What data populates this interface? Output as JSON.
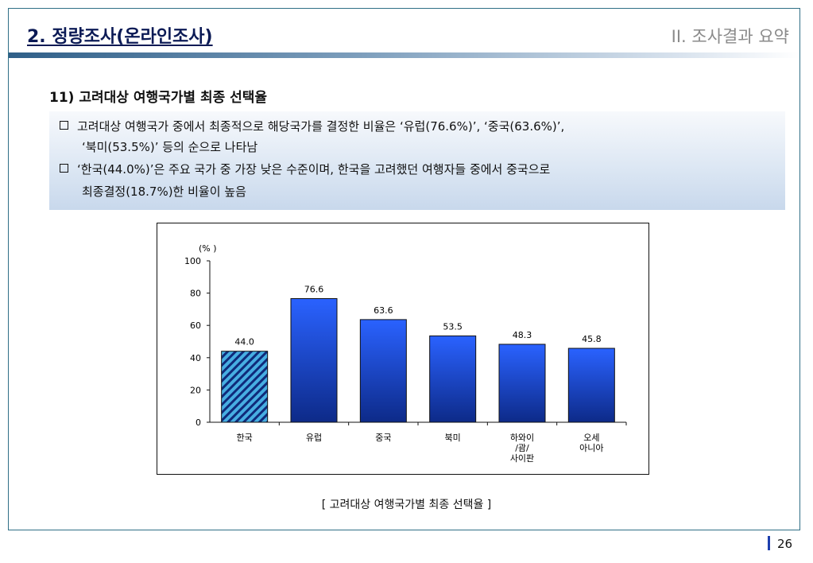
{
  "header": {
    "title": "2. 정량조사(온라인조사)",
    "section": "II. 조사결과 요약"
  },
  "subtitle": "11) 고려대상 여행국가별 최종 선택율",
  "bullets": [
    {
      "line1": "고려대상 여행국가 중에서 최종적으로 해당국가를 결정한 비율은 ‘유럽(76.6%)’, ‘중국(63.6%)’,",
      "line2": "‘북미(53.5%)’ 등의 순으로 나타남"
    },
    {
      "line1": "‘한국(44.0%)’은 주요 국가 중 가장 낮은 수준이며, 한국을 고려했던 여행자들 중에서 중국으로",
      "line2": "최종결정(18.7%)한 비율이 높음"
    }
  ],
  "chart_data": {
    "type": "bar",
    "unit_label": "(% )",
    "categories": [
      [
        "한국"
      ],
      [
        "유럽"
      ],
      [
        "중국"
      ],
      [
        "북미"
      ],
      [
        "하와이",
        "/괌/",
        "사이판"
      ],
      [
        "오세",
        "아니아"
      ]
    ],
    "values": [
      44.0,
      76.6,
      63.6,
      53.5,
      48.3,
      45.8
    ],
    "value_labels": [
      "44.0",
      "76.6",
      "63.6",
      "53.5",
      "48.3",
      "45.8"
    ],
    "ylim": [
      0,
      100
    ],
    "yticks": [
      0,
      20,
      40,
      60,
      80,
      100
    ],
    "highlight_index": 0,
    "colors": {
      "bar_top": "#2a62ff",
      "bar_bottom": "#0d2a88",
      "highlight_fill": "#47aee2",
      "highlight_stripe": "#0f2a7a"
    }
  },
  "caption": "[ 고려대상 여행국가별 최종 선택율 ]",
  "page_number": "26"
}
